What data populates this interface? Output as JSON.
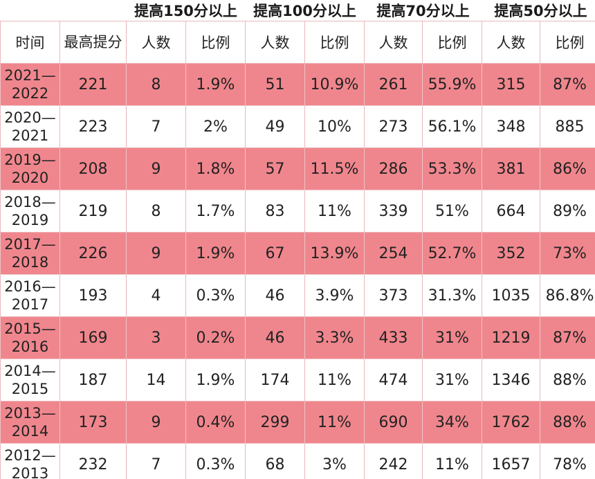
{
  "groups": [
    "提高150分以上",
    "提高100分以上",
    "提高70分以上",
    "提高50分以上"
  ],
  "sub_headers": {
    "time": "时间",
    "max_gain": "最高提分",
    "count": "人数",
    "ratio": "比例"
  },
  "rows": [
    {
      "year": "2021—2022",
      "max": "221",
      "c150": "8",
      "r150": "1.9%",
      "c100": "51",
      "r100": "10.9%",
      "c70": "261",
      "r70": "55.9%",
      "c50": "315",
      "r50": "87%"
    },
    {
      "year": "2020—2021",
      "max": "223",
      "c150": "7",
      "r150": "2%",
      "c100": "49",
      "r100": "10%",
      "c70": "273",
      "r70": "56.1%",
      "c50": "348",
      "r50": "885"
    },
    {
      "year": "2019—2020",
      "max": "208",
      "c150": "9",
      "r150": "1.8%",
      "c100": "57",
      "r100": "11.5%",
      "c70": "286",
      "r70": "53.3%",
      "c50": "381",
      "r50": "86%"
    },
    {
      "year": "2018—2019",
      "max": "219",
      "c150": "8",
      "r150": "1.7%",
      "c100": "83",
      "r100": "11%",
      "c70": "339",
      "r70": "51%",
      "c50": "664",
      "r50": "89%"
    },
    {
      "year": "2017—2018",
      "max": "226",
      "c150": "9",
      "r150": "1.9%",
      "c100": "67",
      "r100": "13.9%",
      "c70": "254",
      "r70": "52.7%",
      "c50": "352",
      "r50": "73%"
    },
    {
      "year": "2016—2017",
      "max": "193",
      "c150": "4",
      "r150": "0.3%",
      "c100": "46",
      "r100": "3.9%",
      "c70": "373",
      "r70": "31.3%",
      "c50": "1035",
      "r50": "86.8%"
    },
    {
      "year": "2015—2016",
      "max": "169",
      "c150": "3",
      "r150": "0.2%",
      "c100": "46",
      "r100": "3.3%",
      "c70": "433",
      "r70": "31%",
      "c50": "1219",
      "r50": "87%"
    },
    {
      "year": "2014—2015",
      "max": "187",
      "c150": "14",
      "r150": "1.9%",
      "c100": "174",
      "r100": "11%",
      "c70": "474",
      "r70": "31%",
      "c50": "1346",
      "r50": "88%"
    },
    {
      "year": "2013—2014",
      "max": "173",
      "c150": "9",
      "r150": "0.4%",
      "c100": "299",
      "r100": "11%",
      "c70": "690",
      "r70": "34%",
      "c50": "1762",
      "r50": "88%"
    },
    {
      "year": "2012—2013",
      "max": "232",
      "c150": "7",
      "r150": "0.3%",
      "c100": "68",
      "r100": "3%",
      "c70": "242",
      "r70": "11%",
      "c50": "1657",
      "r50": "78%"
    }
  ],
  "colors": {
    "stripe_pink": "#f0868d",
    "stripe_white": "#ffffff",
    "grid": "#e9b7bb"
  }
}
